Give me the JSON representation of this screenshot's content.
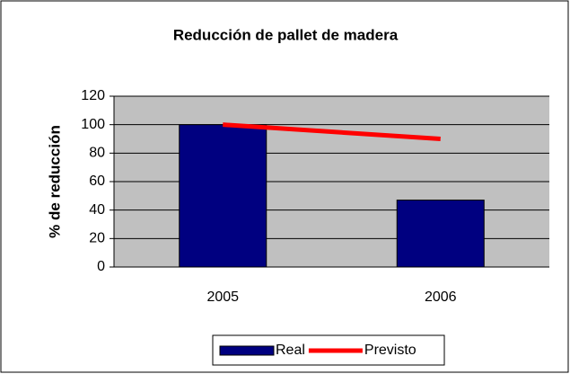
{
  "chart_data": {
    "type": "bar",
    "title": "Reducción de pallet de madera",
    "y_label": "% de reducción",
    "categories": [
      "2005",
      "2006"
    ],
    "series": [
      {
        "name": "Real",
        "type": "bar",
        "color": "#000080",
        "values": [
          100,
          47
        ]
      },
      {
        "name": "Previsto",
        "type": "line",
        "color": "#ff0000",
        "values": [
          100,
          90
        ]
      }
    ],
    "ylim": [
      0,
      120
    ],
    "yticks": [
      0,
      20,
      40,
      60,
      80,
      100,
      120
    ],
    "grid": true,
    "legend": "bottom"
  }
}
